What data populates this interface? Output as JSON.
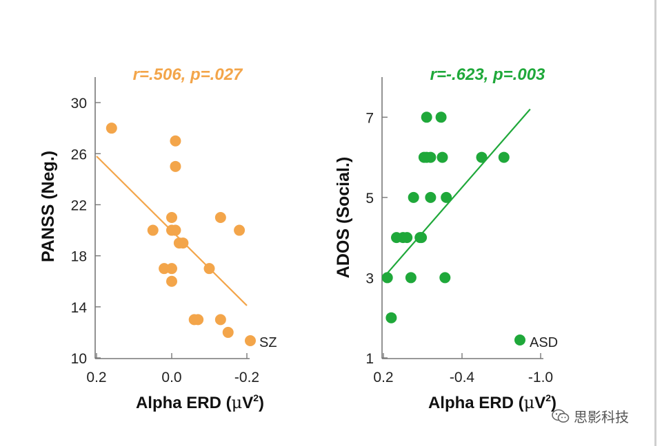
{
  "chart_data": [
    {
      "type": "scatter",
      "annotation": "r=.506, p=.027",
      "ylabel": "PANSS (Neg.)",
      "xlabel_main": "Alpha ERD (",
      "xlabel_mu": "μ",
      "xlabel_unit": "V",
      "xlabel_sup": "2",
      "xlabel_close": ")",
      "xlim": [
        0.2,
        -0.2
      ],
      "ylim": [
        10,
        32
      ],
      "x_ticks": [
        0.2,
        0.0,
        -0.2
      ],
      "x_tick_labels": [
        "0.2",
        "0.0",
        "-0.2"
      ],
      "y_ticks": [
        10,
        14,
        18,
        22,
        26,
        30
      ],
      "y_tick_labels": [
        "10",
        "14",
        "18",
        "22",
        "26",
        "30"
      ],
      "color": "#f3a54a",
      "points": [
        {
          "x": 0.16,
          "y": 28
        },
        {
          "x": -0.01,
          "y": 27
        },
        {
          "x": -0.01,
          "y": 25
        },
        {
          "x": 0.0,
          "y": 21
        },
        {
          "x": -0.13,
          "y": 21
        },
        {
          "x": 0.05,
          "y": 20
        },
        {
          "x": 0.0,
          "y": 20
        },
        {
          "x": -0.01,
          "y": 20
        },
        {
          "x": -0.18,
          "y": 20
        },
        {
          "x": -0.02,
          "y": 19
        },
        {
          "x": -0.03,
          "y": 19
        },
        {
          "x": 0.02,
          "y": 17
        },
        {
          "x": 0.0,
          "y": 17
        },
        {
          "x": -0.1,
          "y": 17
        },
        {
          "x": 0.0,
          "y": 16
        },
        {
          "x": -0.07,
          "y": 13
        },
        {
          "x": -0.06,
          "y": 13
        },
        {
          "x": -0.13,
          "y": 13
        },
        {
          "x": -0.15,
          "y": 12
        }
      ],
      "fit_line": [
        {
          "x": 0.2,
          "y": 25.8
        },
        {
          "x": -0.2,
          "y": 14.1
        }
      ],
      "legend": "SZ"
    },
    {
      "type": "scatter",
      "annotation": "r=-.623, p=.003",
      "ylabel": "ADOS (Social.)",
      "xlabel_main": "Alpha ERD (",
      "xlabel_mu": "μ",
      "xlabel_unit": "V",
      "xlabel_sup": "2",
      "xlabel_close": ")",
      "xlim": [
        0.2,
        -1.0
      ],
      "ylim": [
        1,
        8
      ],
      "x_ticks": [
        0.2,
        -0.4,
        -1.0
      ],
      "x_tick_labels": [
        "0.2",
        "-0.4",
        "-1.0"
      ],
      "y_ticks": [
        1,
        3,
        5,
        7
      ],
      "y_tick_labels": [
        "1",
        "3",
        "5",
        "7"
      ],
      "color": "#1fa83a",
      "points": [
        {
          "x": 0.17,
          "y": 3
        },
        {
          "x": 0.14,
          "y": 2
        },
        {
          "x": 0.1,
          "y": 4
        },
        {
          "x": 0.05,
          "y": 4
        },
        {
          "x": 0.02,
          "y": 4
        },
        {
          "x": -0.01,
          "y": 3
        },
        {
          "x": -0.03,
          "y": 5
        },
        {
          "x": -0.08,
          "y": 4
        },
        {
          "x": -0.09,
          "y": 4
        },
        {
          "x": -0.11,
          "y": 6
        },
        {
          "x": -0.13,
          "y": 7
        },
        {
          "x": -0.13,
          "y": 6
        },
        {
          "x": -0.16,
          "y": 6
        },
        {
          "x": -0.16,
          "y": 5
        },
        {
          "x": -0.24,
          "y": 7
        },
        {
          "x": -0.25,
          "y": 6
        },
        {
          "x": -0.28,
          "y": 5
        },
        {
          "x": -0.27,
          "y": 3
        },
        {
          "x": -0.55,
          "y": 6
        },
        {
          "x": -0.72,
          "y": 6
        }
      ],
      "fit_line": [
        {
          "x": 0.2,
          "y": 3.0
        },
        {
          "x": -0.92,
          "y": 7.2
        }
      ],
      "legend": "ASD"
    }
  ],
  "watermark": {
    "text": "思影科技",
    "icon": "wechat-icon"
  }
}
